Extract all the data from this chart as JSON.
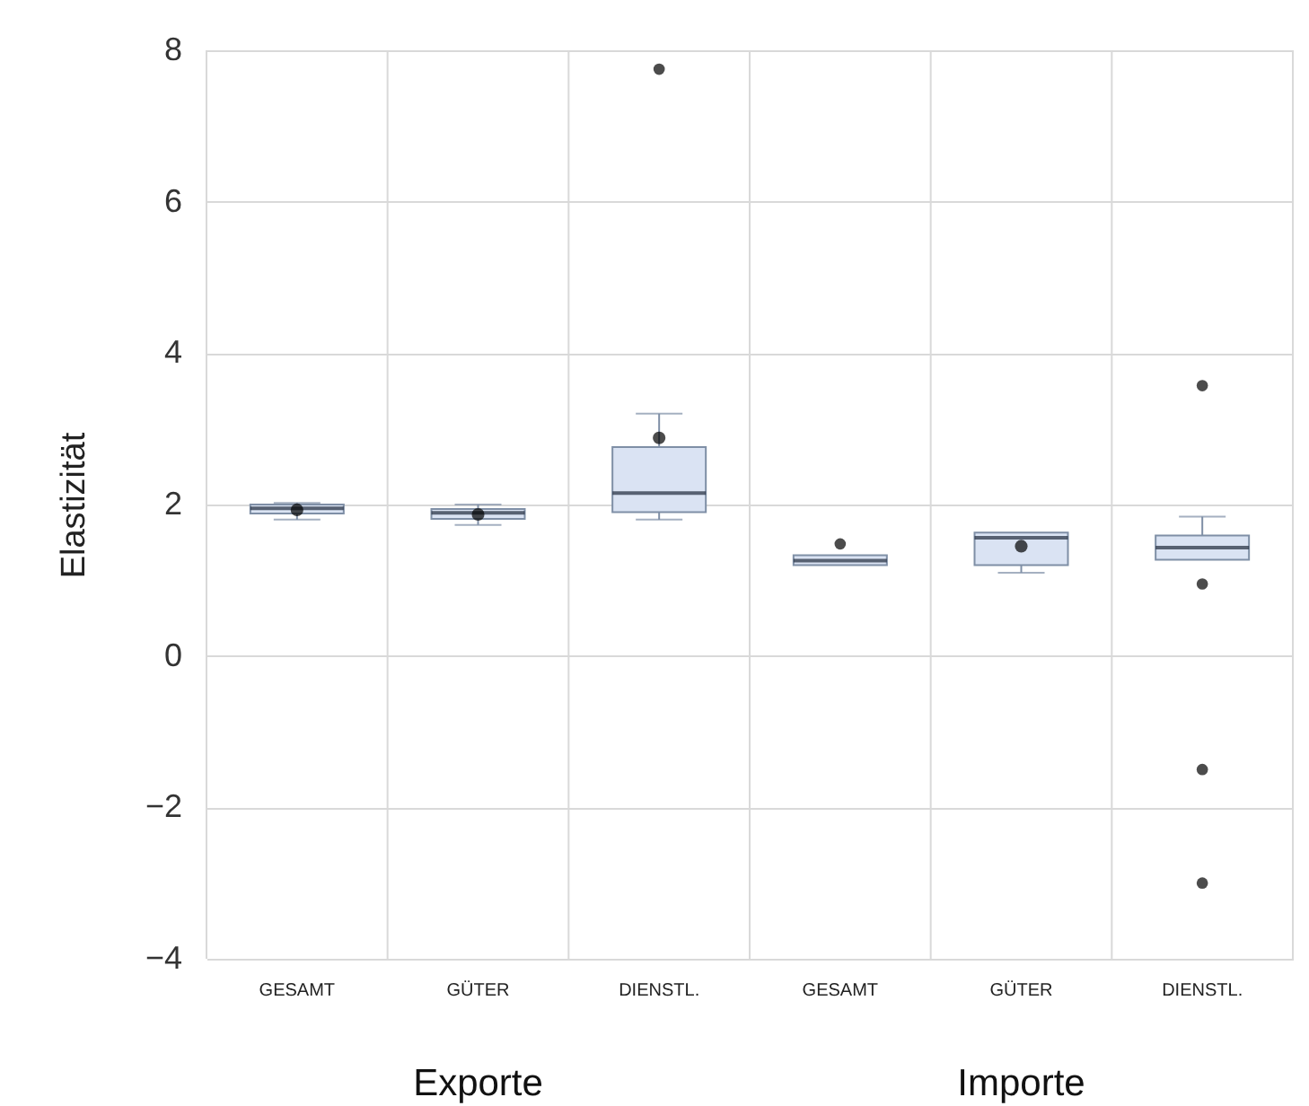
{
  "chart_data": {
    "type": "box",
    "ylabel": "Elastizität",
    "categories": [
      "GESAMT",
      "GÜTER",
      "DIENSTL.",
      "GESAMT",
      "GÜTER",
      "DIENSTL."
    ],
    "annotations": [
      "Exporte",
      "Importe"
    ],
    "ylim": [
      -4,
      8
    ],
    "yticks": [
      -4,
      -2,
      0,
      2,
      4,
      6,
      8
    ],
    "grid": true,
    "color": "#dae3f3",
    "boxes": [
      {
        "low": 1.8,
        "q1": 1.88,
        "median": 1.95,
        "q3": 2,
        "high": 2.02,
        "mean": 1.93
      },
      {
        "low": 1.73,
        "q1": 1.81,
        "median": 1.89,
        "q3": 1.94,
        "high": 2,
        "mean": 1.87
      },
      {
        "low": 1.8,
        "q1": 1.9,
        "median": 2.15,
        "q3": 2.76,
        "high": 3.2,
        "mean": 2.88,
        "outliers": [
          7.75
        ]
      },
      {
        "low": 1.2,
        "q1": 1.2,
        "median": 1.26,
        "q3": 1.33,
        "high": 1.33,
        "outliers": [
          1.48
        ]
      },
      {
        "low": 1.1,
        "q1": 1.2,
        "median": 1.56,
        "q3": 1.63,
        "high": 1.63,
        "mean": 1.45
      },
      {
        "low": 1.27,
        "q1": 1.27,
        "median": 1.43,
        "q3": 1.59,
        "high": 1.84,
        "outliers": [
          0.95,
          3.57,
          -1.5,
          -3
        ]
      }
    ]
  }
}
